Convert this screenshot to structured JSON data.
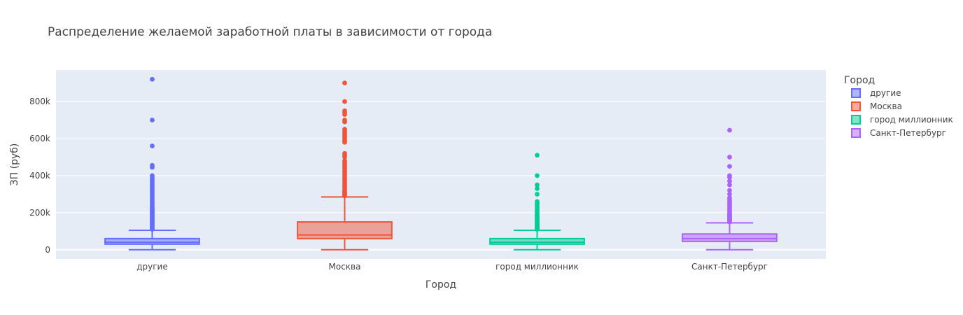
{
  "chart_data": {
    "type": "box",
    "title": "Распределение желаемой заработной платы в зависимости от города",
    "xlabel": "Город",
    "ylabel": "ЗП (руб)",
    "ylim": [
      -50000,
      970000
    ],
    "yticks": [
      0,
      200000,
      400000,
      600000,
      800000
    ],
    "ytick_labels": [
      "0",
      "200k",
      "400k",
      "600k",
      "800k"
    ],
    "grid": true,
    "legend": {
      "title": "Город",
      "position": "top-right"
    },
    "categories": [
      "другие",
      "Москва",
      "город миллионник",
      "Санкт-Петербург"
    ],
    "series": [
      {
        "name": "другие",
        "color": "#636efa",
        "min": 0,
        "q1": 30000,
        "median": 40000,
        "q3": 60000,
        "max": 105000,
        "outliers": [
          110000,
          115000,
          120000,
          125000,
          130000,
          135000,
          140000,
          145000,
          150000,
          155000,
          160000,
          165000,
          170000,
          175000,
          180000,
          185000,
          190000,
          195000,
          200000,
          205000,
          210000,
          215000,
          220000,
          225000,
          230000,
          240000,
          250000,
          260000,
          270000,
          280000,
          290000,
          300000,
          310000,
          320000,
          330000,
          340000,
          350000,
          360000,
          370000,
          380000,
          390000,
          400000,
          445000,
          455000,
          560000,
          700000,
          920000
        ]
      },
      {
        "name": "Москва",
        "color": "#ef553b",
        "min": 0,
        "q1": 60000,
        "median": 80000,
        "q3": 150000,
        "max": 285000,
        "outliers": [
          290000,
          295000,
          300000,
          305000,
          310000,
          315000,
          320000,
          330000,
          340000,
          350000,
          360000,
          370000,
          380000,
          390000,
          400000,
          410000,
          420000,
          430000,
          440000,
          450000,
          460000,
          470000,
          480000,
          500000,
          510000,
          520000,
          580000,
          590000,
          600000,
          610000,
          620000,
          630000,
          640000,
          650000,
          690000,
          700000,
          730000,
          740000,
          750000,
          800000,
          900000
        ]
      },
      {
        "name": "город миллионник",
        "color": "#00cc96",
        "min": 0,
        "q1": 30000,
        "median": 40000,
        "q3": 60000,
        "max": 105000,
        "outliers": [
          110000,
          115000,
          120000,
          125000,
          130000,
          135000,
          140000,
          145000,
          150000,
          155000,
          160000,
          165000,
          170000,
          175000,
          180000,
          185000,
          190000,
          200000,
          210000,
          220000,
          230000,
          240000,
          250000,
          260000,
          300000,
          330000,
          350000,
          400000,
          510000
        ]
      },
      {
        "name": "Санкт-Петербург",
        "color": "#ab63fa",
        "min": 0,
        "q1": 45000,
        "median": 60000,
        "q3": 85000,
        "max": 145000,
        "outliers": [
          150000,
          155000,
          160000,
          165000,
          170000,
          175000,
          180000,
          185000,
          190000,
          195000,
          200000,
          210000,
          220000,
          230000,
          240000,
          250000,
          260000,
          270000,
          280000,
          300000,
          320000,
          350000,
          370000,
          390000,
          400000,
          450000,
          500000,
          645000
        ]
      }
    ]
  }
}
